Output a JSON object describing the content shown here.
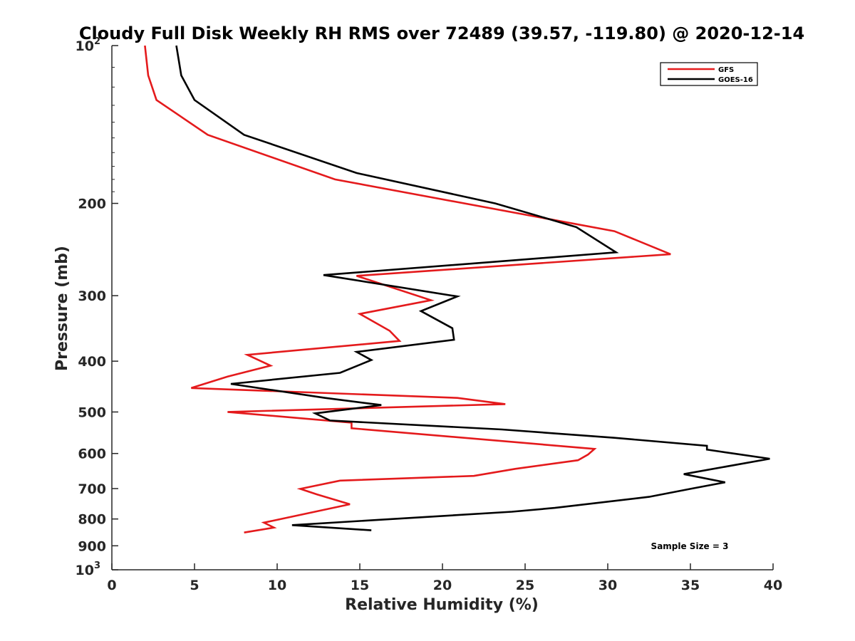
{
  "chart_data": {
    "type": "line",
    "title": "Cloudy Full Disk Weekly RH RMS over 72489 (39.57, -119.80) @ 2020-12-14",
    "xlabel": "Relative Humidity (%)",
    "ylabel": "Pressure (mb)",
    "xlim": [
      0,
      40
    ],
    "ylim": [
      100,
      1000
    ],
    "y_scale": "log",
    "y_reversed": true,
    "grid": false,
    "legend_position": "top-right",
    "x_ticks": [
      0,
      5,
      10,
      15,
      20,
      25,
      30,
      35,
      40
    ],
    "y_ticks": [
      {
        "value": 100,
        "base": "10",
        "exp": "2"
      },
      {
        "value": 200,
        "label": "200"
      },
      {
        "value": 300,
        "label": "300"
      },
      {
        "value": 400,
        "label": "400"
      },
      {
        "value": 500,
        "label": "500"
      },
      {
        "value": 600,
        "label": "600"
      },
      {
        "value": 700,
        "label": "700"
      },
      {
        "value": 800,
        "label": "800"
      },
      {
        "value": 900,
        "label": "900"
      },
      {
        "value": 1000,
        "base": "10",
        "exp": "3"
      }
    ],
    "annotation": "Sample Size = 3",
    "series": [
      {
        "name": "GFS",
        "color": "#e41a1c",
        "points": [
          [
            2.0,
            100
          ],
          [
            2.2,
            114
          ],
          [
            2.7,
            127
          ],
          [
            5.8,
            148
          ],
          [
            13.5,
            180
          ],
          [
            30.4,
            226
          ],
          [
            33.8,
            250
          ],
          [
            14.8,
            275
          ],
          [
            19.3,
            306
          ],
          [
            15.0,
            325
          ],
          [
            16.8,
            350
          ],
          [
            17.4,
            366
          ],
          [
            8.2,
            389
          ],
          [
            9.6,
            408
          ],
          [
            7.0,
            428
          ],
          [
            4.8,
            450
          ],
          [
            20.9,
            470
          ],
          [
            23.8,
            483
          ],
          [
            7.0,
            500
          ],
          [
            14.5,
            524
          ],
          [
            14.5,
            537
          ],
          [
            29.2,
            588
          ],
          [
            28.8,
            603
          ],
          [
            28.2,
            618
          ],
          [
            24.4,
            642
          ],
          [
            21.9,
            662
          ],
          [
            13.8,
            676
          ],
          [
            11.4,
            701
          ],
          [
            12.4,
            718
          ],
          [
            14.4,
            750
          ],
          [
            9.2,
            813
          ],
          [
            9.8,
            831
          ],
          [
            8.0,
            849
          ]
        ]
      },
      {
        "name": "GOES-16",
        "color": "#000000",
        "points": [
          [
            3.9,
            100
          ],
          [
            4.2,
            114
          ],
          [
            5.0,
            127
          ],
          [
            8.0,
            148
          ],
          [
            14.8,
            175
          ],
          [
            23.2,
            200
          ],
          [
            28.1,
            222
          ],
          [
            30.5,
            248
          ],
          [
            12.8,
            274
          ],
          [
            20.9,
            301
          ],
          [
            18.7,
            321
          ],
          [
            20.6,
            346
          ],
          [
            20.7,
            364
          ],
          [
            14.8,
            384
          ],
          [
            15.7,
            398
          ],
          [
            13.8,
            421
          ],
          [
            7.2,
            442
          ],
          [
            12.9,
            470
          ],
          [
            16.3,
            485
          ],
          [
            12.3,
            503
          ],
          [
            13.2,
            519
          ],
          [
            23.6,
            540
          ],
          [
            30.4,
            560
          ],
          [
            36.0,
            580
          ],
          [
            36.0,
            590
          ],
          [
            39.8,
            614
          ],
          [
            34.6,
            657
          ],
          [
            37.1,
            681
          ],
          [
            35.0,
            701
          ],
          [
            32.5,
            726
          ],
          [
            26.8,
            762
          ],
          [
            24.2,
            775
          ],
          [
            15.0,
            807
          ],
          [
            10.9,
            822
          ],
          [
            15.7,
            841
          ]
        ]
      }
    ]
  }
}
